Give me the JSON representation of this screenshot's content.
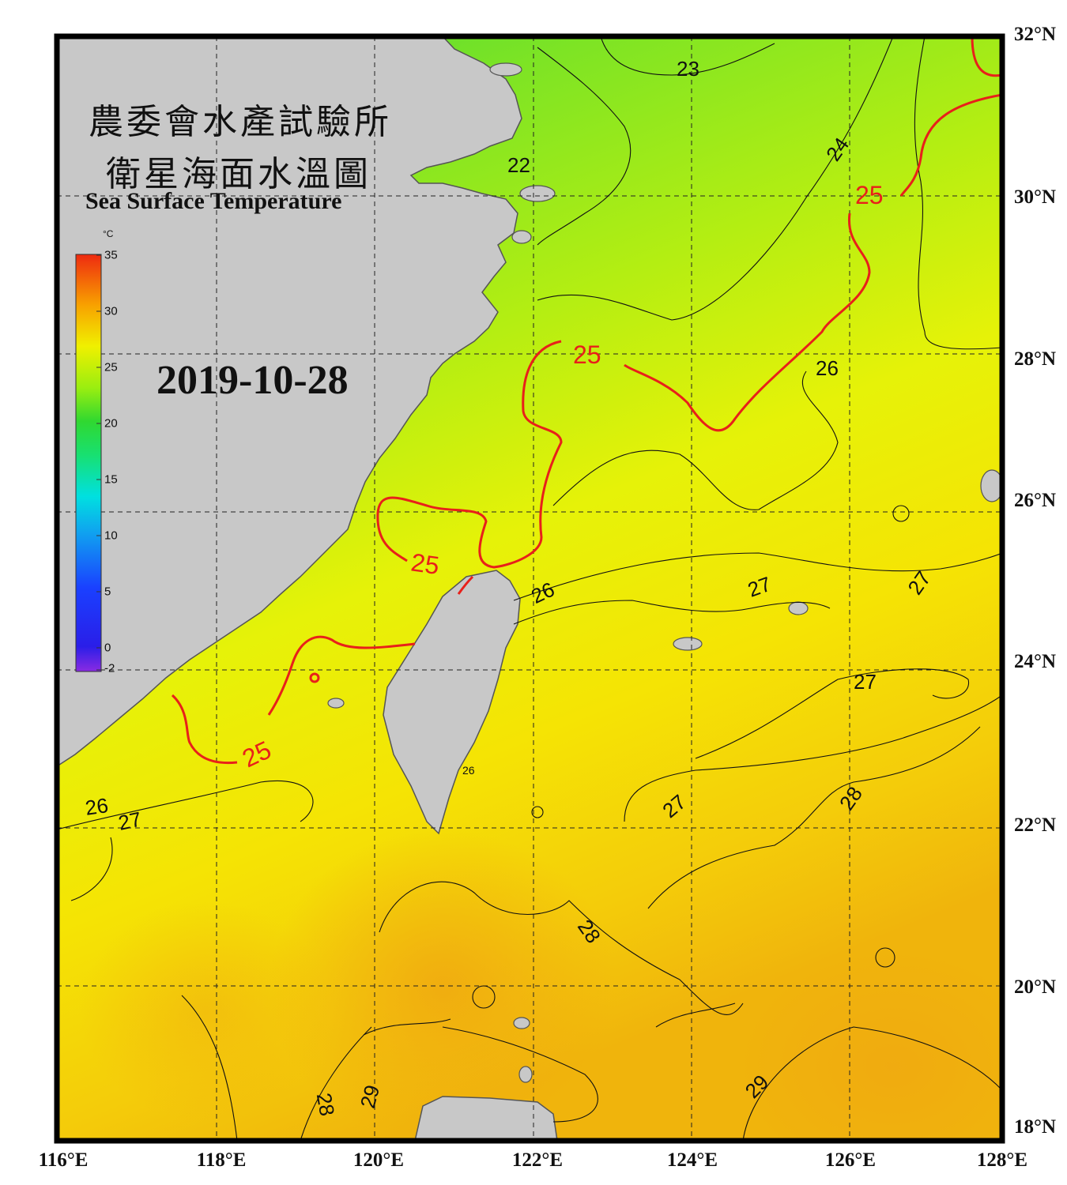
{
  "title": {
    "zh_line1": "農委會水產試驗所",
    "zh_line2": "衛星海面水溫圖",
    "en": "Sea Surface Temperature"
  },
  "date": "2019-10-28",
  "colorbar": {
    "unit": "°C",
    "min": -2,
    "max": 35,
    "ticks": [
      "35",
      "30",
      "25",
      "20",
      "15",
      "10",
      "5",
      "0",
      "-2"
    ]
  },
  "axes": {
    "lat_labels": [
      "32°N",
      "30°N",
      "28°N",
      "26°N",
      "24°N",
      "22°N",
      "20°N",
      "18°N"
    ],
    "lon_labels": [
      "116°E",
      "118°E",
      "120°E",
      "122°E",
      "124°E",
      "126°E",
      "128°E"
    ]
  },
  "contour_labels": [
    "23",
    "22",
    "24",
    "25",
    "25",
    "26",
    "25",
    "26",
    "27",
    "27",
    "26",
    "27",
    "25",
    "26",
    "27",
    "27",
    "28",
    "28",
    "29",
    "28",
    "29"
  ],
  "colors": {
    "land": "#c8c8c8",
    "coast": "#555555",
    "contour_25": "#e8201a",
    "contour": "#111111",
    "frame": "#000000"
  }
}
